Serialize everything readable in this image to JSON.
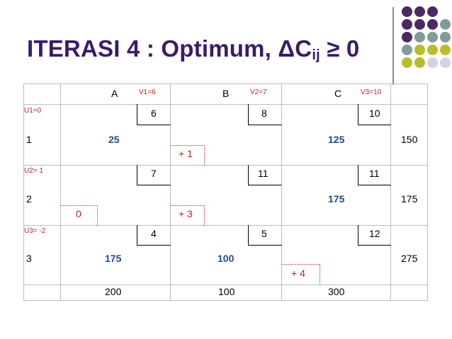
{
  "title": {
    "main": "ITERASI 4 : Optimum, ΔC",
    "sub": "ij",
    "tail": " ≥ 0"
  },
  "colors": {
    "title": "#3b1a6b",
    "allocation": "#1f4a8c",
    "delta": "#c0222a"
  },
  "table": {
    "columns": [
      {
        "name": "A",
        "v": "V1=6"
      },
      {
        "name": "B",
        "v": "V2=7"
      },
      {
        "name": "C",
        "v": "V3=10"
      }
    ],
    "rows": [
      {
        "u": "U1=0",
        "name": "1",
        "costs": [
          "6",
          "8",
          "10"
        ],
        "alloc": [
          "25",
          "",
          "125"
        ],
        "delta": [
          "",
          "+ 1",
          ""
        ],
        "supply": "150"
      },
      {
        "u": "U2= 1",
        "name": "2",
        "costs": [
          "7",
          "11",
          "11"
        ],
        "alloc": [
          "",
          "",
          "175"
        ],
        "delta": [
          "0",
          "+ 3",
          ""
        ],
        "supply": "175"
      },
      {
        "u": "U3= -2",
        "name": "3",
        "costs": [
          "4",
          "5",
          "12"
        ],
        "alloc": [
          "175",
          "100",
          ""
        ],
        "delta": [
          "",
          "",
          "+ 4"
        ],
        "supply": "275"
      }
    ],
    "demand": [
      "200",
      "100",
      "300"
    ]
  }
}
